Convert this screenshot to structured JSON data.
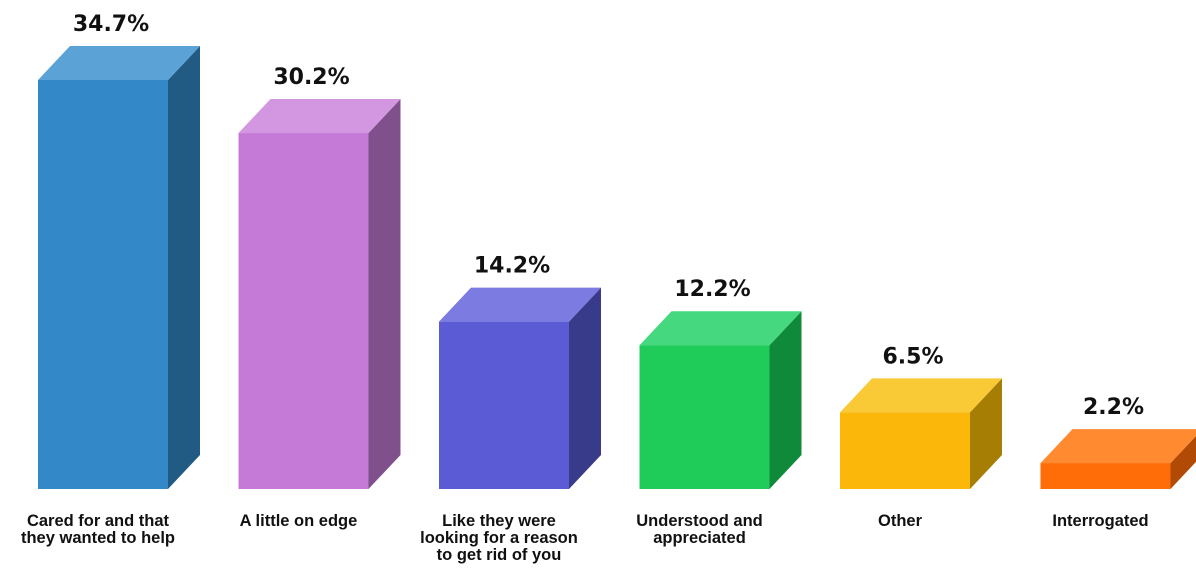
{
  "chart_data": {
    "type": "bar",
    "categories": [
      "Cared for and that they wanted to help",
      "A little on edge",
      "Like they were looking for a reason to get rid of you",
      "Understood and appreciated",
      "Other",
      "Interrogated"
    ],
    "category_lines": [
      [
        "Cared for and that",
        "they wanted to help"
      ],
      [
        "A little on edge"
      ],
      [
        "Like they were",
        "looking for a reason",
        "to get rid of you"
      ],
      [
        "Understood and",
        "appreciated"
      ],
      [
        "Other"
      ],
      [
        "Interrogated"
      ]
    ],
    "values": [
      34.7,
      30.2,
      14.2,
      12.2,
      6.5,
      2.2
    ],
    "value_labels": [
      "34.7%",
      "30.2%",
      "14.2%",
      "12.2%",
      "6.5%",
      "2.2%"
    ],
    "unit": "%",
    "title": "",
    "xlabel": "",
    "ylabel": "",
    "ylim": [
      0,
      34.7
    ],
    "grid": false,
    "legend": "none",
    "style": "3d-column",
    "colors": [
      {
        "front": "#3388C8",
        "top": "#5BA3D6",
        "side": "#215A82"
      },
      {
        "front": "#C57AD8",
        "top": "#D396E0",
        "side": "#80508C"
      },
      {
        "front": "#5B5BD6",
        "top": "#7B7BE2",
        "side": "#383A8A"
      },
      {
        "front": "#1FCC5A",
        "top": "#46D87E",
        "side": "#0F8A3A"
      },
      {
        "front": "#FBB80A",
        "top": "#F9C936",
        "side": "#A67E04"
      },
      {
        "front": "#FF6D08",
        "top": "#FF8A30",
        "side": "#B04A04"
      }
    ]
  }
}
